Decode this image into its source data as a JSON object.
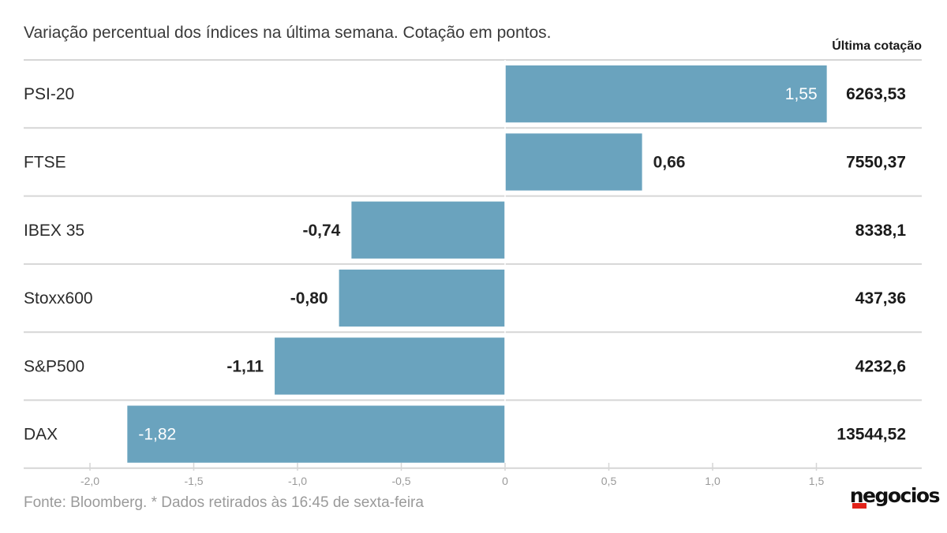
{
  "header": {
    "subtitle": "Variação percentual dos índices na última semana. Cotação em pontos.",
    "column_header": "Última cotação"
  },
  "footer": {
    "source": "Fonte: Bloomberg.  * Dados retirados às 16:45 de sexta-feira",
    "logo_text": "negocios"
  },
  "colors": {
    "bar": "#6aa3be",
    "bar_label_inside": "#ffffff",
    "bar_label_outside": "#222222",
    "gridline": "#d6d6d6",
    "axis_text": "#9a9a9a",
    "logo_accent": "#e2231a"
  },
  "chart_data": {
    "type": "bar",
    "orientation": "horizontal",
    "categories": [
      "PSI-20",
      "FTSE",
      "IBEX 35",
      "Stoxx600",
      "S&P500",
      "DAX"
    ],
    "series": [
      {
        "values": [
          1.55,
          0.66,
          -0.74,
          -0.8,
          -1.11,
          -1.82
        ],
        "labels": [
          "1,55",
          "0,66",
          "-0,74",
          "-0,80",
          "-1,11",
          "-1,82"
        ]
      }
    ],
    "last_quote": [
      "6263,53",
      "7550,37",
      "8338,1",
      "437,36",
      "4232,6",
      "13544,52"
    ],
    "xlim": [
      -2.0,
      1.5
    ],
    "ticks": [
      -2.0,
      -1.5,
      -1.0,
      -0.5,
      0,
      0.5,
      1.0,
      1.5
    ],
    "tick_labels": [
      "-2,0",
      "-1,5",
      "-1,0",
      "-0,5",
      "0",
      "0,5",
      "1,0",
      "1,5"
    ],
    "xlabel": "",
    "ylabel": ""
  }
}
